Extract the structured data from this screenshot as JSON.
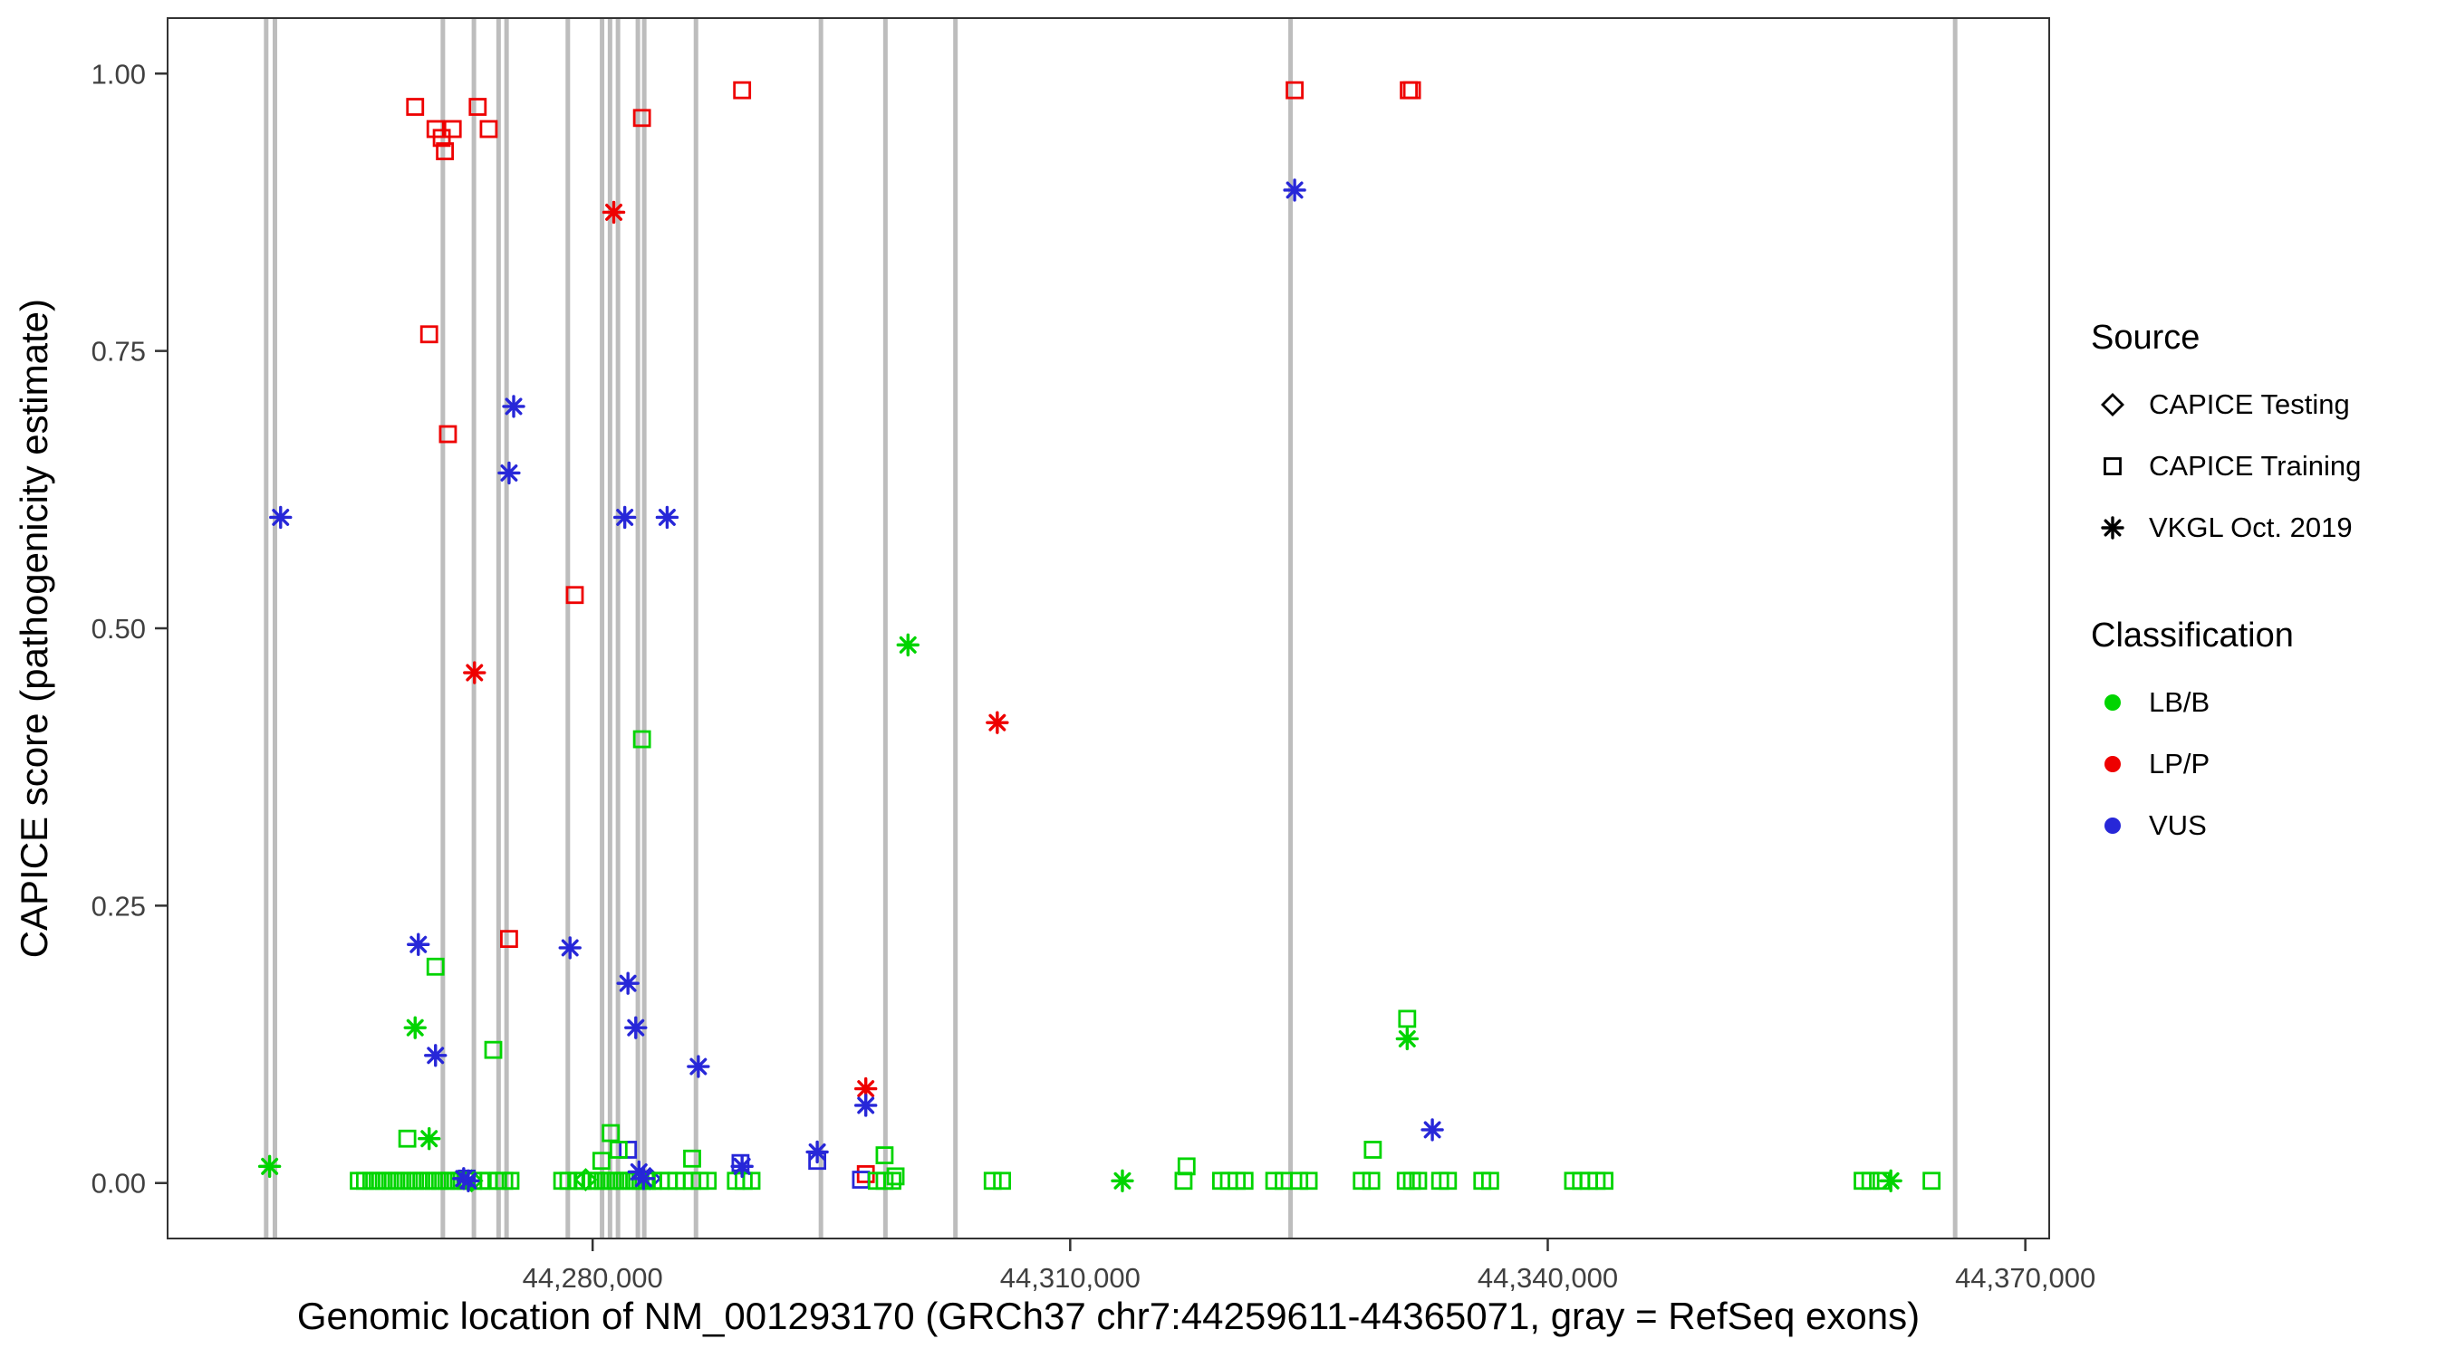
{
  "figure": {
    "background": "#ffffff",
    "panel_border_color": "#333333"
  },
  "legend": {
    "source": {
      "title": "Source",
      "items": [
        "CAPICE Testing",
        "CAPICE Training",
        "VKGL Oct. 2019"
      ]
    },
    "classification": {
      "title": "Classification",
      "items": [
        "LB/B",
        "LP/P",
        "VUS"
      ]
    }
  },
  "chart_data": {
    "type": "scatter",
    "title": "",
    "xlabel": "Genomic location of NM_001293170 (GRCh37 chr7:44259611-44365071, gray = RefSeq exons)",
    "ylabel": "CAPICE score (pathogenicity estimate)",
    "xlim": [
      44253300,
      44371500
    ],
    "ylim": [
      -0.05,
      1.05
    ],
    "grid": false,
    "legend_position": "right",
    "x_ticks": [
      44280000,
      44310000,
      44340000,
      44370000
    ],
    "x_tick_labels": [
      "44,280,000",
      "44,310,000",
      "44,340,000",
      "44,370,000"
    ],
    "y_ticks": [
      0.0,
      0.25,
      0.5,
      0.75,
      1.0
    ],
    "y_tick_labels": [
      "0.00",
      "0.25",
      "0.50",
      "0.75",
      "1.00"
    ],
    "colors": {
      "LB/B": "#00d400",
      "LP/P": "#ee0000",
      "VUS": "#2727d8",
      "exon": "#bdbdbd",
      "glyph": "#000000",
      "tick_text": "#404040"
    },
    "exons": [
      [
        44259350,
        44259600
      ],
      [
        44259900,
        44260150
      ],
      [
        44270450,
        44270680
      ],
      [
        44272400,
        44272620
      ],
      [
        44273950,
        44274200
      ],
      [
        44274450,
        44274700
      ],
      [
        44278300,
        44278520
      ],
      [
        44280450,
        44280700
      ],
      [
        44280950,
        44281160
      ],
      [
        44281450,
        44281700
      ],
      [
        44282700,
        44282910
      ],
      [
        44283100,
        44283360
      ],
      [
        44286350,
        44286570
      ],
      [
        44294200,
        44294420
      ],
      [
        44298250,
        44298470
      ],
      [
        44302650,
        44302910
      ],
      [
        44323700,
        44323960
      ],
      [
        44365450,
        44365720
      ]
    ],
    "series": [
      {
        "name": "CAPICE Testing",
        "shape": "diamond",
        "points": [
          [
            44279560,
            0.003,
            "LB/B"
          ],
          [
            44272400,
            0.002,
            "LB/B"
          ],
          [
            44283600,
            0.004,
            "VUS"
          ]
        ]
      },
      {
        "name": "CAPICE Training",
        "shape": "square",
        "points": [
          [
            44268850,
            0.97,
            "LP/P"
          ],
          [
            44270130,
            0.95,
            "LP/P"
          ],
          [
            44270520,
            0.942,
            "LP/P"
          ],
          [
            44270720,
            0.93,
            "LP/P"
          ],
          [
            44271210,
            0.95,
            "LP/P"
          ],
          [
            44272780,
            0.97,
            "LP/P"
          ],
          [
            44273470,
            0.95,
            "LP/P"
          ],
          [
            44269730,
            0.765,
            "LP/P"
          ],
          [
            44270910,
            0.675,
            "LP/P"
          ],
          [
            44274750,
            0.22,
            "LP/P"
          ],
          [
            44278880,
            0.53,
            "LP/P"
          ],
          [
            44283100,
            0.96,
            "LP/P"
          ],
          [
            44289390,
            0.985,
            "LP/P"
          ],
          [
            44324100,
            0.985,
            "LP/P"
          ],
          [
            44331270,
            0.985,
            "LP/P"
          ],
          [
            44331470,
            0.985,
            "LP/P"
          ],
          [
            44297160,
            0.008,
            "LP/P"
          ],
          [
            44289290,
            0.018,
            "VUS"
          ],
          [
            44294110,
            0.02,
            "VUS"
          ],
          [
            44296860,
            0.003,
            "VUS"
          ],
          [
            44282220,
            0.03,
            "VUS"
          ],
          [
            44272090,
            0.004,
            "VUS"
          ],
          [
            44270130,
            0.195,
            "LB/B"
          ],
          [
            44273760,
            0.12,
            "LB/B"
          ],
          [
            44283100,
            0.4,
            "LB/B"
          ],
          [
            44331170,
            0.148,
            "LB/B"
          ],
          [
            44329010,
            0.03,
            "LB/B"
          ],
          [
            44317310,
            0.015,
            "LB/B"
          ],
          [
            44281140,
            0.045,
            "LB/B"
          ],
          [
            44281630,
            0.03,
            "LB/B"
          ],
          [
            44280550,
            0.02,
            "LB/B"
          ],
          [
            44286250,
            0.022,
            "LB/B"
          ],
          [
            44298340,
            0.025,
            "LB/B"
          ],
          [
            44299030,
            0.006,
            "LB/B"
          ],
          [
            44268360,
            0.04,
            "LB/B"
          ],
          [
            44265310,
            0.002,
            "LB/B"
          ],
          [
            44265700,
            0.002,
            "LB/B"
          ],
          [
            44266100,
            0.002,
            "LB/B"
          ],
          [
            44266490,
            0.002,
            "LB/B"
          ],
          [
            44266880,
            0.002,
            "LB/B"
          ],
          [
            44267280,
            0.002,
            "LB/B"
          ],
          [
            44267670,
            0.002,
            "LB/B"
          ],
          [
            44268060,
            0.002,
            "LB/B"
          ],
          [
            44268460,
            0.002,
            "LB/B"
          ],
          [
            44268850,
            0.002,
            "LB/B"
          ],
          [
            44269240,
            0.002,
            "LB/B"
          ],
          [
            44269640,
            0.002,
            "LB/B"
          ],
          [
            44270030,
            0.002,
            "LB/B"
          ],
          [
            44270420,
            0.002,
            "LB/B"
          ],
          [
            44270810,
            0.002,
            "LB/B"
          ],
          [
            44271210,
            0.002,
            "LB/B"
          ],
          [
            44271600,
            0.002,
            "LB/B"
          ],
          [
            44271990,
            0.002,
            "LB/B"
          ],
          [
            44272490,
            0.002,
            "LB/B"
          ],
          [
            44272980,
            0.002,
            "LB/B"
          ],
          [
            44273470,
            0.002,
            "LB/B"
          ],
          [
            44274060,
            0.002,
            "LB/B"
          ],
          [
            44274450,
            0.002,
            "LB/B"
          ],
          [
            44274840,
            0.002,
            "LB/B"
          ],
          [
            44278090,
            0.002,
            "LB/B"
          ],
          [
            44278480,
            0.002,
            "LB/B"
          ],
          [
            44278970,
            0.002,
            "LB/B"
          ],
          [
            44279370,
            0.002,
            "LB/B"
          ],
          [
            44279860,
            0.002,
            "LB/B"
          ],
          [
            44280250,
            0.002,
            "LB/B"
          ],
          [
            44280640,
            0.002,
            "LB/B"
          ],
          [
            44281040,
            0.002,
            "LB/B"
          ],
          [
            44281430,
            0.002,
            "LB/B"
          ],
          [
            44281820,
            0.002,
            "LB/B"
          ],
          [
            44282220,
            0.002,
            "LB/B"
          ],
          [
            44282610,
            0.002,
            "LB/B"
          ],
          [
            44283000,
            0.002,
            "LB/B"
          ],
          [
            44283400,
            0.002,
            "LB/B"
          ],
          [
            44283790,
            0.002,
            "LB/B"
          ],
          [
            44284280,
            0.002,
            "LB/B"
          ],
          [
            44284770,
            0.002,
            "LB/B"
          ],
          [
            44285260,
            0.002,
            "LB/B"
          ],
          [
            44285760,
            0.002,
            "LB/B"
          ],
          [
            44286250,
            0.002,
            "LB/B"
          ],
          [
            44286740,
            0.002,
            "LB/B"
          ],
          [
            44287230,
            0.002,
            "LB/B"
          ],
          [
            44289000,
            0.002,
            "LB/B"
          ],
          [
            44289490,
            0.002,
            "LB/B"
          ],
          [
            44289980,
            0.002,
            "LB/B"
          ],
          [
            44297850,
            0.002,
            "LB/B"
          ],
          [
            44298340,
            0.002,
            "LB/B"
          ],
          [
            44298830,
            0.002,
            "LB/B"
          ],
          [
            44305130,
            0.002,
            "LB/B"
          ],
          [
            44305720,
            0.002,
            "LB/B"
          ],
          [
            44317120,
            0.002,
            "LB/B"
          ],
          [
            44319480,
            0.002,
            "LB/B"
          ],
          [
            44319970,
            0.002,
            "LB/B"
          ],
          [
            44320460,
            0.002,
            "LB/B"
          ],
          [
            44320950,
            0.002,
            "LB/B"
          ],
          [
            44322820,
            0.002,
            "LB/B"
          ],
          [
            44323410,
            0.002,
            "LB/B"
          ],
          [
            44324390,
            0.002,
            "LB/B"
          ],
          [
            44324980,
            0.002,
            "LB/B"
          ],
          [
            44328320,
            0.002,
            "LB/B"
          ],
          [
            44328910,
            0.002,
            "LB/B"
          ],
          [
            44331080,
            0.002,
            "LB/B"
          ],
          [
            44331470,
            0.002,
            "LB/B"
          ],
          [
            44331860,
            0.002,
            "LB/B"
          ],
          [
            44333240,
            0.002,
            "LB/B"
          ],
          [
            44333730,
            0.002,
            "LB/B"
          ],
          [
            44335890,
            0.002,
            "LB/B"
          ],
          [
            44336380,
            0.002,
            "LB/B"
          ],
          [
            44341590,
            0.002,
            "LB/B"
          ],
          [
            44342090,
            0.002,
            "LB/B"
          ],
          [
            44342580,
            0.002,
            "LB/B"
          ],
          [
            44343070,
            0.002,
            "LB/B"
          ],
          [
            44343560,
            0.002,
            "LB/B"
          ],
          [
            44359780,
            0.002,
            "LB/B"
          ],
          [
            44360270,
            0.002,
            "LB/B"
          ],
          [
            44360960,
            0.002,
            "LB/B"
          ],
          [
            44364110,
            0.002,
            "LB/B"
          ]
        ]
      },
      {
        "name": "VKGL Oct. 2019",
        "shape": "asterisk",
        "points": [
          [
            44281330,
            0.875,
            "LP/P"
          ],
          [
            44272580,
            0.46,
            "LP/P"
          ],
          [
            44305420,
            0.415,
            "LP/P"
          ],
          [
            44297160,
            0.085,
            "LP/P"
          ],
          [
            44260400,
            0.6,
            "VUS"
          ],
          [
            44275040,
            0.7,
            "VUS"
          ],
          [
            44274750,
            0.64,
            "VUS"
          ],
          [
            44282020,
            0.6,
            "VUS"
          ],
          [
            44284680,
            0.6,
            "VUS"
          ],
          [
            44269050,
            0.215,
            "VUS"
          ],
          [
            44278580,
            0.212,
            "VUS"
          ],
          [
            44282220,
            0.18,
            "VUS"
          ],
          [
            44282710,
            0.14,
            "VUS"
          ],
          [
            44270130,
            0.115,
            "VUS"
          ],
          [
            44286640,
            0.105,
            "VUS"
          ],
          [
            44324100,
            0.895,
            "VUS"
          ],
          [
            44332750,
            0.048,
            "VUS"
          ],
          [
            44294110,
            0.028,
            "VUS"
          ],
          [
            44289390,
            0.015,
            "VUS"
          ],
          [
            44297160,
            0.07,
            "VUS"
          ],
          [
            44271900,
            0.004,
            "VUS"
          ],
          [
            44282910,
            0.01,
            "VUS"
          ],
          [
            44283200,
            0.004,
            "VUS"
          ],
          [
            44272190,
            0.002,
            "VUS"
          ],
          [
            44268850,
            0.14,
            "LB/B"
          ],
          [
            44299810,
            0.485,
            "LB/B"
          ],
          [
            44331170,
            0.13,
            "LB/B"
          ],
          [
            44259710,
            0.015,
            "LB/B"
          ],
          [
            44313280,
            0.002,
            "LB/B"
          ],
          [
            44361550,
            0.002,
            "LB/B"
          ],
          [
            44269730,
            0.04,
            "LB/B"
          ]
        ]
      }
    ]
  }
}
